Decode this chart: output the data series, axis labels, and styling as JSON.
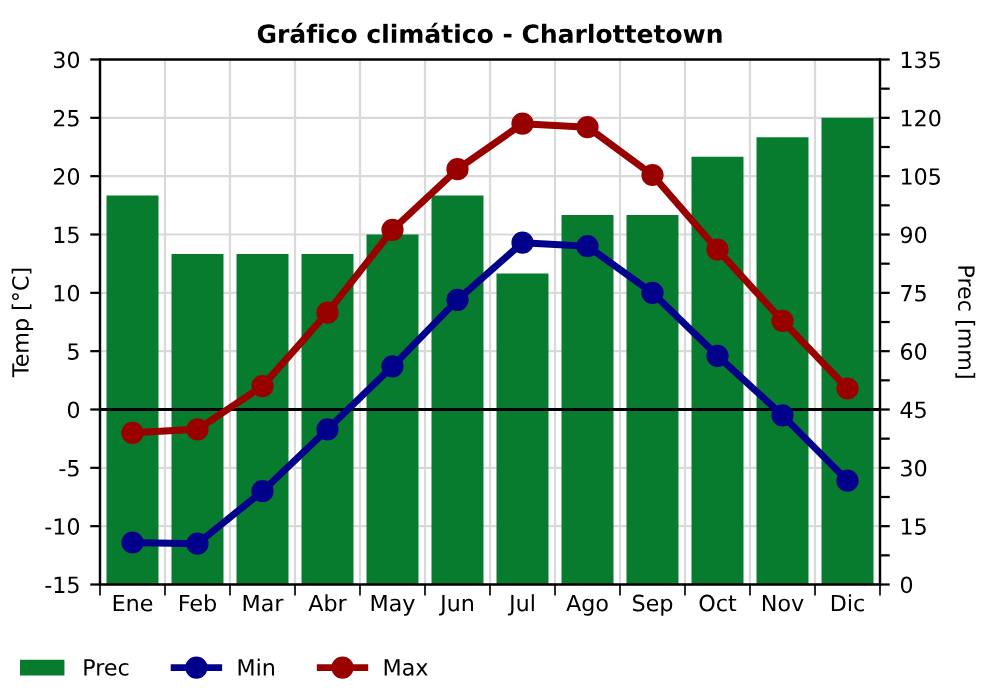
{
  "chart_data": {
    "type": "bar",
    "title": "Gráfico climático - Charlottetown",
    "ylabel": "Temp [°C]",
    "y2label": "Prec [mm]",
    "categories": [
      "Ene",
      "Feb",
      "Mar",
      "Abr",
      "May",
      "Jun",
      "Jul",
      "Ago",
      "Sep",
      "Oct",
      "Nov",
      "Dic"
    ],
    "series": [
      {
        "name": "Prec",
        "axis": "y2",
        "color": "#077c2f",
        "values": [
          100,
          85,
          85,
          85,
          90,
          100,
          80,
          95,
          95,
          110,
          115,
          120
        ]
      },
      {
        "name": "Min",
        "type": "line",
        "color": "#00008b",
        "values": [
          -11.4,
          -11.5,
          -7.0,
          -1.7,
          3.7,
          9.4,
          14.3,
          14.0,
          10.0,
          4.6,
          -0.5,
          -6.1
        ]
      },
      {
        "name": "Max",
        "type": "line",
        "color": "#990000",
        "values": [
          -2.0,
          -1.7,
          2.0,
          8.3,
          15.4,
          20.6,
          24.5,
          24.2,
          20.1,
          13.7,
          7.6,
          1.8
        ]
      }
    ],
    "ylim": [
      -15,
      30
    ],
    "yticks": [
      -15,
      -10,
      -5,
      0,
      5,
      10,
      15,
      20,
      25,
      30
    ],
    "y2lim": [
      0,
      135
    ],
    "y2ticks": [
      0,
      {
        "value": 7.5,
        "label": null
      },
      15,
      {
        "value": 22.5,
        "label": null
      },
      30,
      {
        "value": 37.5,
        "label": null
      },
      45,
      {
        "value": 52.5,
        "label": null
      },
      60,
      {
        "value": 67.5,
        "label": null
      },
      75,
      {
        "value": 82.5,
        "label": null
      },
      90,
      {
        "value": 97.5,
        "label": null
      },
      105,
      {
        "value": 112.5,
        "label": null
      },
      120,
      {
        "value": 127.5,
        "label": null
      },
      135
    ],
    "ref_lines": [
      {
        "axis": "y",
        "value": 0,
        "color": "#000000"
      }
    ],
    "grid": true,
    "legend": "bottom left",
    "marker": "circle",
    "line_style": "solid"
  }
}
